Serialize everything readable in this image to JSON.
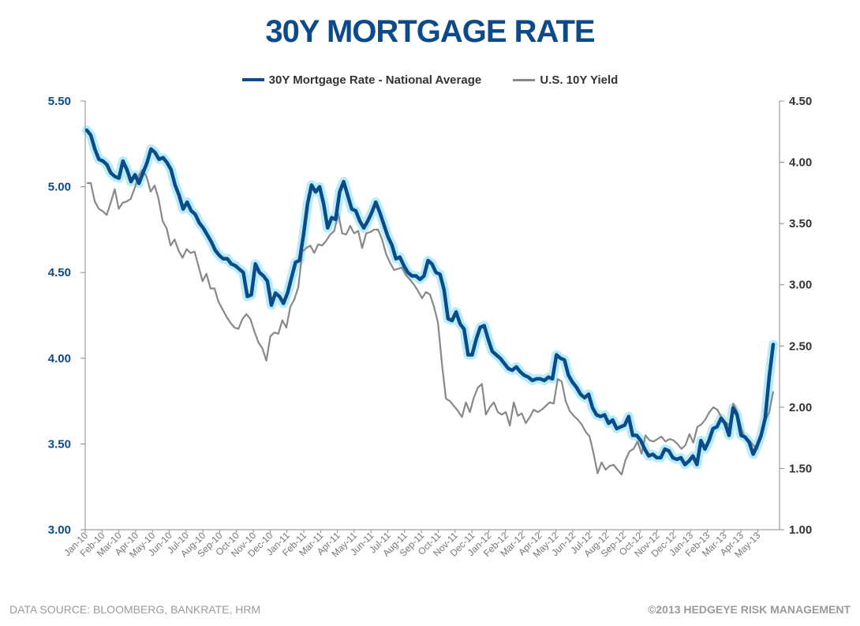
{
  "chart_data": {
    "type": "line",
    "title": "30Y MORTGAGE RATE",
    "series": [
      {
        "name": "30Y Mortgage Rate - National Average",
        "axis": "left",
        "color": "#0d4a8a",
        "glow": "#5fd4f5",
        "values": [
          5.33,
          5.3,
          5.22,
          5.16,
          5.15,
          5.13,
          5.08,
          5.06,
          5.05,
          5.15,
          5.1,
          5.03,
          5.07,
          5.02,
          5.08,
          5.14,
          5.22,
          5.2,
          5.16,
          5.17,
          5.14,
          5.1,
          5.01,
          4.95,
          4.87,
          4.91,
          4.86,
          4.84,
          4.79,
          4.76,
          4.72,
          4.68,
          4.63,
          4.6,
          4.58,
          4.58,
          4.55,
          4.54,
          4.52,
          4.5,
          4.36,
          4.37,
          4.55,
          4.5,
          4.48,
          4.45,
          4.31,
          4.38,
          4.36,
          4.32,
          4.38,
          4.47,
          4.56,
          4.57,
          4.72,
          4.9,
          5.01,
          4.97,
          5.0,
          4.9,
          4.76,
          4.82,
          4.81,
          4.97,
          5.03,
          4.95,
          4.87,
          4.86,
          4.8,
          4.76,
          4.8,
          4.85,
          4.91,
          4.85,
          4.78,
          4.71,
          4.66,
          4.58,
          4.59,
          4.54,
          4.5,
          4.48,
          4.48,
          4.46,
          4.48,
          4.57,
          4.55,
          4.5,
          4.49,
          4.4,
          4.23,
          4.22,
          4.27,
          4.2,
          4.17,
          4.02,
          4.02,
          4.11,
          4.18,
          4.19,
          4.11,
          4.04,
          4.02,
          4.0,
          3.97,
          3.94,
          3.93,
          3.95,
          3.92,
          3.9,
          3.89,
          3.87,
          3.88,
          3.88,
          3.87,
          3.89,
          3.88,
          4.02,
          4.0,
          3.99,
          3.9,
          3.86,
          3.83,
          3.79,
          3.77,
          3.79,
          3.71,
          3.67,
          3.66,
          3.67,
          3.62,
          3.64,
          3.59,
          3.6,
          3.61,
          3.66,
          3.55,
          3.55,
          3.52,
          3.47,
          3.43,
          3.44,
          3.42,
          3.42,
          3.47,
          3.46,
          3.42,
          3.41,
          3.42,
          3.38,
          3.4,
          3.43,
          3.38,
          3.52,
          3.47,
          3.52,
          3.59,
          3.6,
          3.65,
          3.62,
          3.55,
          3.71,
          3.67,
          3.55,
          3.54,
          3.51,
          3.44,
          3.49,
          3.55,
          3.65,
          3.89,
          4.08
        ]
      },
      {
        "name": "U.S. 10Y Yield",
        "axis": "right",
        "color": "#888888",
        "values": [
          3.83,
          3.83,
          3.68,
          3.62,
          3.6,
          3.57,
          3.67,
          3.78,
          3.62,
          3.67,
          3.68,
          3.7,
          3.79,
          3.89,
          3.94,
          3.88,
          3.76,
          3.81,
          3.7,
          3.52,
          3.46,
          3.32,
          3.37,
          3.28,
          3.22,
          3.29,
          3.26,
          3.27,
          3.15,
          3.03,
          3.09,
          2.97,
          2.97,
          2.86,
          2.8,
          2.74,
          2.69,
          2.65,
          2.64,
          2.72,
          2.76,
          2.72,
          2.62,
          2.53,
          2.48,
          2.38,
          2.58,
          2.61,
          2.6,
          2.71,
          2.65,
          2.82,
          2.88,
          2.98,
          3.27,
          3.3,
          3.32,
          3.26,
          3.33,
          3.32,
          3.36,
          3.41,
          3.44,
          3.58,
          3.42,
          3.41,
          3.48,
          3.42,
          3.44,
          3.3,
          3.42,
          3.43,
          3.45,
          3.45,
          3.37,
          3.25,
          3.18,
          3.12,
          3.13,
          3.14,
          3.08,
          3.04,
          3.0,
          2.95,
          2.89,
          2.94,
          2.92,
          2.82,
          2.69,
          2.35,
          2.07,
          2.05,
          2.01,
          1.97,
          1.92,
          2.04,
          1.96,
          2.08,
          2.16,
          2.19,
          1.94,
          2.0,
          2.04,
          1.96,
          1.94,
          1.96,
          1.85,
          2.04,
          1.93,
          1.95,
          1.87,
          1.92,
          1.98,
          1.96,
          1.98,
          2.01,
          2.04,
          2.03,
          2.23,
          2.21,
          2.05,
          1.97,
          1.93,
          1.9,
          1.86,
          1.8,
          1.76,
          1.62,
          1.46,
          1.55,
          1.49,
          1.52,
          1.53,
          1.49,
          1.45,
          1.57,
          1.64,
          1.66,
          1.72,
          1.62,
          1.77,
          1.73,
          1.72,
          1.74,
          1.76,
          1.72,
          1.74,
          1.73,
          1.7,
          1.66,
          1.69,
          1.78,
          1.71,
          1.84,
          1.86,
          1.9,
          1.96,
          2.0,
          1.98,
          1.92,
          1.88,
          1.85,
          2.03,
          1.96,
          1.83,
          1.74,
          1.73,
          1.69,
          1.66,
          1.79,
          1.89,
          1.96,
          2.13
        ]
      }
    ],
    "x_tick_labels": [
      "Jan-10",
      "Feb-10",
      "Mar-10",
      "Apr-10",
      "May-10",
      "Jun-10",
      "Jul-10",
      "Aug-10",
      "Sep-10",
      "Oct-10",
      "Nov-10",
      "Dec-10",
      "Jan-11",
      "Feb-11",
      "Mar-11",
      "Apr-11",
      "May-11",
      "Jun-11",
      "Jul-11",
      "Aug-11",
      "Sep-11",
      "Oct-11",
      "Nov-11",
      "Dec-11",
      "Jan-12",
      "Feb-12",
      "Mar-12",
      "Apr-12",
      "May-12",
      "Jun-12",
      "Jul-12",
      "Aug-12",
      "Sep-12",
      "Oct-12",
      "Nov-12",
      "Dec-12",
      "Jan-13",
      "Feb-13",
      "Mar-13",
      "Apr-13",
      "May-13"
    ],
    "y_left": {
      "lim": [
        3.0,
        5.5
      ],
      "ticks": [
        "3.00",
        "3.50",
        "4.00",
        "4.50",
        "5.00",
        "5.50"
      ],
      "color": "#0d4a8a"
    },
    "y_right": {
      "lim": [
        1.0,
        4.5
      ],
      "ticks": [
        "1.00",
        "1.50",
        "2.00",
        "2.50",
        "3.00",
        "3.50",
        "4.00",
        "4.50"
      ],
      "color": "#333333"
    },
    "grid": false,
    "legend_position": "top-center"
  },
  "footer": {
    "source": "DATA SOURCE: BLOOMBERG, BANKRATE, HRM",
    "copyright": "©2013 HEDGEYE RISK MANAGEMENT"
  }
}
